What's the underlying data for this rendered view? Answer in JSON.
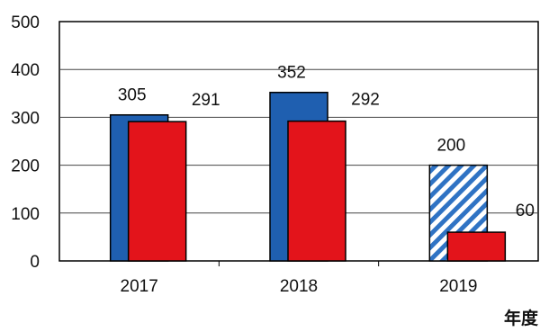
{
  "chart_data": {
    "type": "bar",
    "title": "",
    "xlabel": "年度",
    "ylabel": "",
    "ylim": [
      0,
      500
    ],
    "yticks": [
      "0",
      "100",
      "200",
      "300",
      "400",
      "500"
    ],
    "categories": [
      "2017",
      "2018",
      "2019"
    ],
    "series": [
      {
        "values": [
          305,
          352,
          200
        ],
        "color": "#1f5fb0",
        "pattern_last": "diagonal-hatch"
      },
      {
        "values": [
          291,
          292,
          60
        ],
        "color": "#e3141b"
      }
    ],
    "grid": true,
    "legend": "none"
  }
}
